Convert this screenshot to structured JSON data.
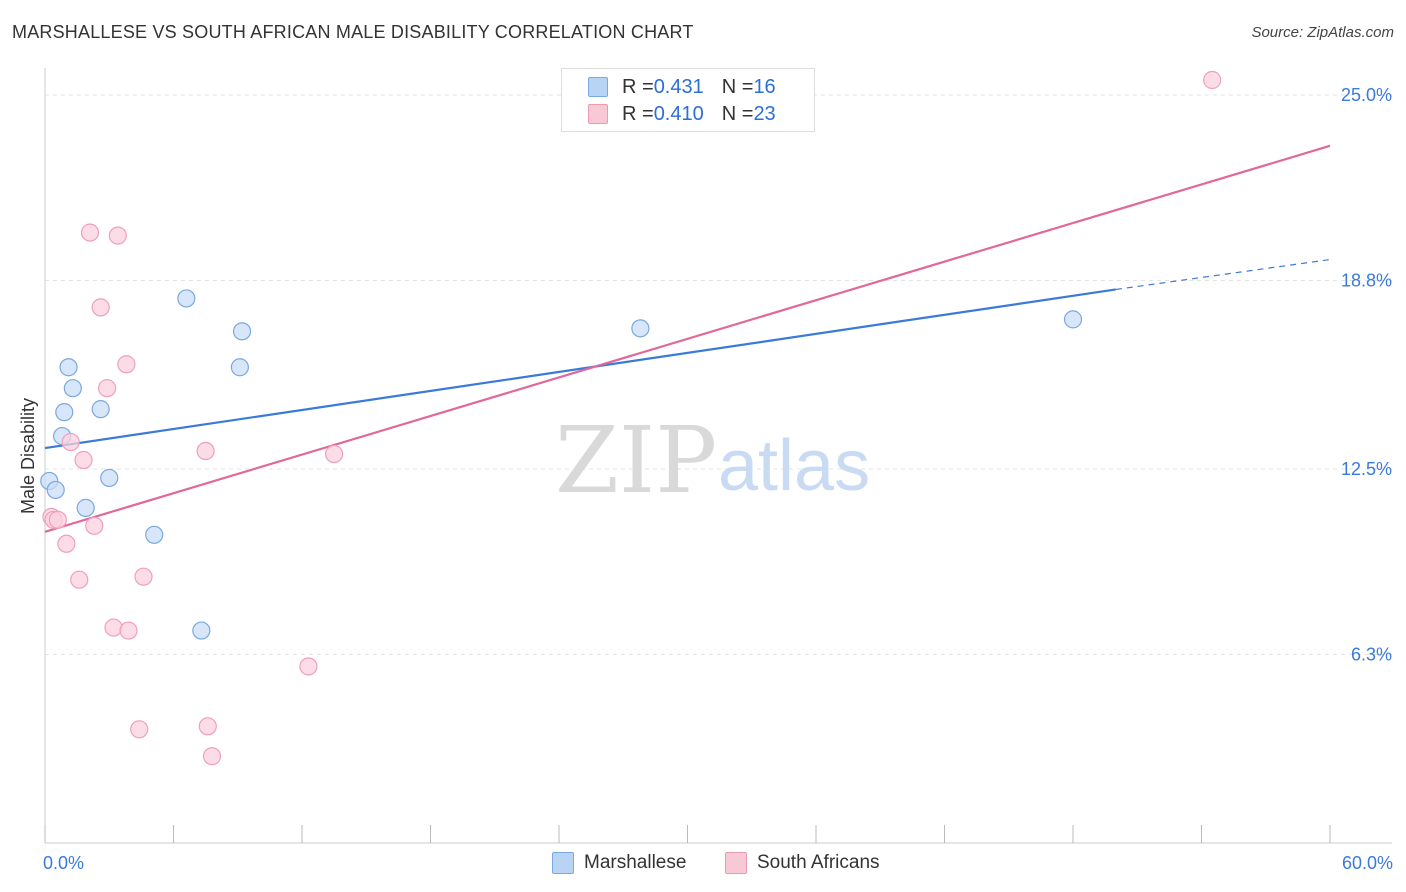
{
  "header": {
    "title": "MARSHALLESE VS SOUTH AFRICAN MALE DISABILITY CORRELATION CHART",
    "source": "Source: ZipAtlas.com"
  },
  "legend_top": {
    "rows": [
      {
        "r_label": "R = ",
        "r_value": "0.431",
        "n_label": "N = ",
        "n_value": "16",
        "color": "#b8d4f5"
      },
      {
        "r_label": "R = ",
        "r_value": "0.410",
        "n_label": "N = ",
        "n_value": "23",
        "color": "#f9c8d7"
      }
    ]
  },
  "watermark": {
    "zip": "ZIP",
    "atlas": "atlas"
  },
  "chart_data": {
    "type": "scatter",
    "title": "MARSHALLESE VS SOUTH AFRICAN MALE DISABILITY CORRELATION CHART",
    "xlabel": "",
    "ylabel": "Male Disability",
    "xlim": [
      0,
      60
    ],
    "ylim": [
      0,
      25.5
    ],
    "x_tick_labels": [
      "0.0%",
      "60.0%"
    ],
    "y_ticks": [
      6.3,
      12.5,
      18.8,
      25.0
    ],
    "y_tick_labels": [
      "6.3%",
      "12.5%",
      "18.8%",
      "25.0%"
    ],
    "grid": true,
    "series": [
      {
        "name": "Marshallese",
        "color": "#3a7ad9",
        "fill": "#c9def6",
        "stroke": "#7aa8e0",
        "points": [
          {
            "x": 0.2,
            "y": 12.1
          },
          {
            "x": 0.5,
            "y": 11.8
          },
          {
            "x": 0.8,
            "y": 13.6
          },
          {
            "x": 0.9,
            "y": 14.4
          },
          {
            "x": 1.1,
            "y": 15.9
          },
          {
            "x": 1.3,
            "y": 15.2
          },
          {
            "x": 1.9,
            "y": 11.2
          },
          {
            "x": 2.6,
            "y": 14.5
          },
          {
            "x": 3.0,
            "y": 12.2
          },
          {
            "x": 5.1,
            "y": 10.3
          },
          {
            "x": 6.6,
            "y": 18.2
          },
          {
            "x": 7.3,
            "y": 7.1
          },
          {
            "x": 9.1,
            "y": 15.9
          },
          {
            "x": 9.2,
            "y": 17.1
          },
          {
            "x": 27.8,
            "y": 17.2
          },
          {
            "x": 48.0,
            "y": 17.5
          }
        ],
        "trend": {
          "x0": 0,
          "y0": 13.2,
          "x1": 50.0,
          "y1": 18.5,
          "dash_to_x": 60.0,
          "dash_to_y": 19.5
        }
      },
      {
        "name": "South Africans",
        "color": "#e0689a",
        "fill": "#fbd2df",
        "stroke": "#ef9fba",
        "points": [
          {
            "x": 0.3,
            "y": 10.9
          },
          {
            "x": 0.4,
            "y": 10.8
          },
          {
            "x": 0.6,
            "y": 10.8
          },
          {
            "x": 1.0,
            "y": 10.0
          },
          {
            "x": 1.2,
            "y": 13.4
          },
          {
            "x": 1.6,
            "y": 8.8
          },
          {
            "x": 1.8,
            "y": 12.8
          },
          {
            "x": 2.1,
            "y": 20.4
          },
          {
            "x": 2.3,
            "y": 10.6
          },
          {
            "x": 2.6,
            "y": 17.9
          },
          {
            "x": 2.9,
            "y": 15.2
          },
          {
            "x": 3.2,
            "y": 7.2
          },
          {
            "x": 3.4,
            "y": 20.3
          },
          {
            "x": 3.8,
            "y": 16.0
          },
          {
            "x": 3.9,
            "y": 7.1
          },
          {
            "x": 4.4,
            "y": 3.8
          },
          {
            "x": 4.6,
            "y": 8.9
          },
          {
            "x": 7.5,
            "y": 13.1
          },
          {
            "x": 7.6,
            "y": 3.9
          },
          {
            "x": 7.8,
            "y": 2.9
          },
          {
            "x": 12.3,
            "y": 5.9
          },
          {
            "x": 13.5,
            "y": 13.0
          },
          {
            "x": 54.5,
            "y": 25.5
          }
        ],
        "trend": {
          "x0": 0,
          "y0": 10.4,
          "x1": 60.0,
          "y1": 23.3
        }
      }
    ],
    "legend": [
      "Marshallese",
      "South Africans"
    ]
  }
}
